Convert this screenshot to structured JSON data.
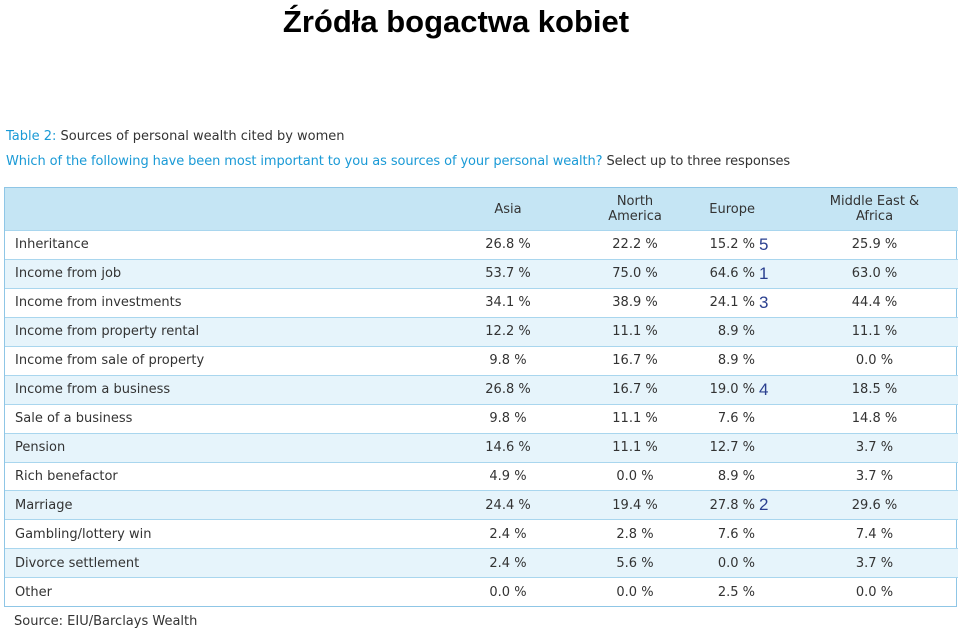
{
  "slide_title": "Źródła bogactwa kobiet",
  "table_label": "Table 2:",
  "table_title": "Sources of personal wealth cited by women",
  "question_blue": "Which of the following have been most important to you as sources of your personal wealth?",
  "question_instruction": "Select up to three responses",
  "columns": [
    "Asia",
    "North America",
    "Europe",
    "Middle East & Africa"
  ],
  "rows": [
    {
      "label": "Inheritance",
      "values": [
        "26.8 %",
        "22.2 %",
        "15.2 %",
        "25.9 %"
      ],
      "rank": "5"
    },
    {
      "label": "Income from job",
      "values": [
        "53.7 %",
        "75.0 %",
        "64.6 %",
        "63.0 %"
      ],
      "rank": "1"
    },
    {
      "label": "Income from investments",
      "values": [
        "34.1 %",
        "38.9 %",
        "24.1 %",
        "44.4 %"
      ],
      "rank": "3"
    },
    {
      "label": "Income from property rental",
      "values": [
        "12.2 %",
        "11.1 %",
        "8.9 %",
        "11.1 %"
      ],
      "rank": ""
    },
    {
      "label": "Income from sale of property",
      "values": [
        "9.8 %",
        "16.7 %",
        "8.9 %",
        "0.0 %"
      ],
      "rank": ""
    },
    {
      "label": "Income from a business",
      "values": [
        "26.8 %",
        "16.7 %",
        "19.0 %",
        "18.5 %"
      ],
      "rank": "4"
    },
    {
      "label": "Sale of a business",
      "values": [
        "9.8 %",
        "11.1 %",
        "7.6 %",
        "14.8 %"
      ],
      "rank": ""
    },
    {
      "label": "Pension",
      "values": [
        "14.6 %",
        "11.1 %",
        "12.7 %",
        "3.7 %"
      ],
      "rank": ""
    },
    {
      "label": "Rich benefactor",
      "values": [
        "4.9 %",
        "0.0 %",
        "8.9 %",
        "3.7 %"
      ],
      "rank": ""
    },
    {
      "label": "Marriage",
      "values": [
        "24.4 %",
        "19.4 %",
        "27.8 %",
        "29.6 %"
      ],
      "rank": "2"
    },
    {
      "label": "Gambling/lottery win",
      "values": [
        "2.4 %",
        "2.8 %",
        "7.6 %",
        "7.4 %"
      ],
      "rank": ""
    },
    {
      "label": "Divorce settlement",
      "values": [
        "2.4 %",
        "5.6 %",
        "0.0 %",
        "3.7 %"
      ],
      "rank": ""
    },
    {
      "label": "Other",
      "values": [
        "0.0 %",
        "0.0 %",
        "2.5 %",
        "0.0 %"
      ],
      "rank": ""
    }
  ],
  "source": "Source: EIU/Barclays Wealth",
  "colors": {
    "accent": "#1a9ad6",
    "header_bg": "#c5e5f4",
    "stripe_bg": "#e6f4fb",
    "rank_text": "#2a3f8f"
  }
}
